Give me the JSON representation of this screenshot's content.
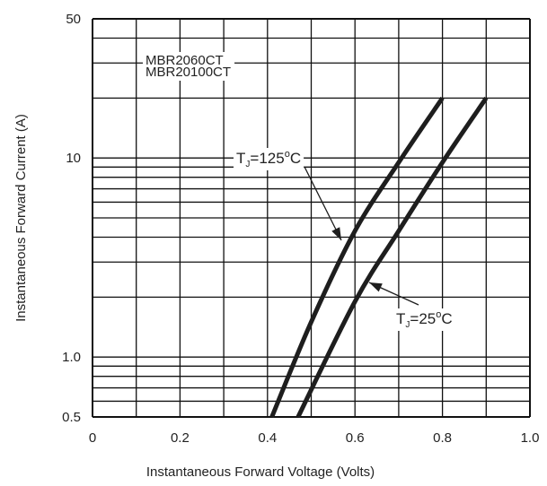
{
  "chart_data": {
    "type": "line",
    "title": "",
    "xlabel": "Instantaneous Forward Voltage (Volts)",
    "ylabel": "Instantaneous Forward Current (A)",
    "xlim": [
      0,
      1.0
    ],
    "ylim": [
      0.5,
      50
    ],
    "yscale": "log",
    "grid": true,
    "x_ticks": [
      "0",
      "0.2",
      "0.4",
      "0.6",
      "0.8",
      "1.0"
    ],
    "y_ticks": [
      "0.5",
      "1.0",
      "10",
      "50"
    ],
    "part_numbers": [
      "MBR2060CT",
      "MBR20100CT"
    ],
    "series": [
      {
        "label_main": "T",
        "label_sub": "J",
        "label_rest": "=125",
        "label_sup": "o",
        "label_unit": "C",
        "points": [
          [
            0.41,
            0.5
          ],
          [
            0.5,
            1.5
          ],
          [
            0.6,
            4.3
          ],
          [
            0.7,
            9.5
          ],
          [
            0.8,
            20
          ]
        ]
      },
      {
        "label_main": "T",
        "label_sub": "J",
        "label_rest": "=25",
        "label_sup": "o",
        "label_unit": "C",
        "points": [
          [
            0.47,
            0.5
          ],
          [
            0.6,
            1.9
          ],
          [
            0.7,
            4.3
          ],
          [
            0.8,
            9.5
          ],
          [
            0.9,
            20
          ]
        ]
      }
    ],
    "colors": {
      "curve": "#1e1e1e",
      "grid": "#111111",
      "background": "#ffffff"
    }
  }
}
